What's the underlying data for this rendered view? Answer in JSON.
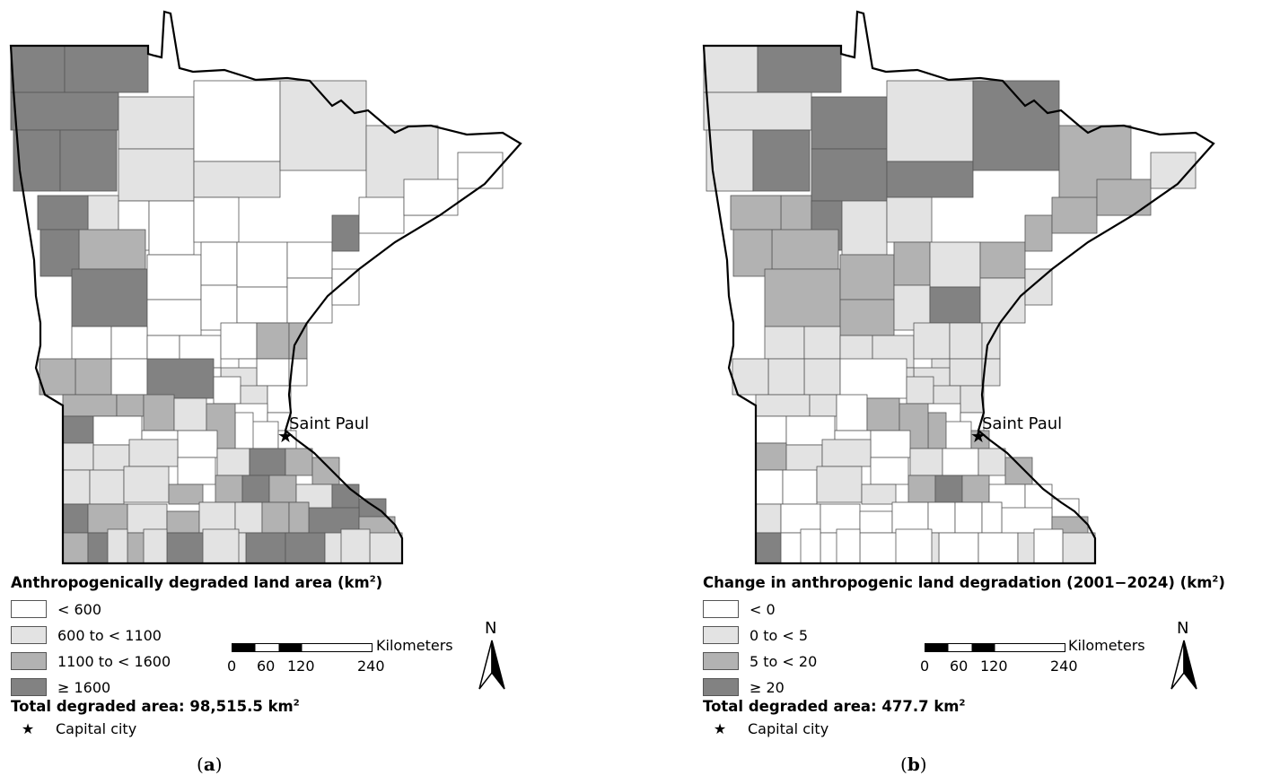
{
  "colors": {
    "class0": "#ffffff",
    "class1": "#e3e3e3",
    "class2": "#b2b2b2",
    "class3": "#828282",
    "outline": "#000000",
    "county_border": "#555555"
  },
  "panels": [
    {
      "caption_letter": "a",
      "legend_title": "Anthropogenically degraded land area (km",
      "legend_title_suffix": ")",
      "legend_sup": "2",
      "legend_items": [
        {
          "label": "< 600",
          "class": 0
        },
        {
          "label": "600 to < 1100",
          "class": 1
        },
        {
          "label": "1100 to < 1600",
          "class": 2
        },
        {
          "label": "≥ 1600",
          "class": 3
        }
      ],
      "total_label": "Total degraded area: 98,515.5 km",
      "total_sup": "2",
      "capital_label": "Capital city",
      "city_name": "Saint Paul",
      "scale_unit": "Kilometers",
      "scale_ticks": [
        "0",
        "60",
        "120",
        "240"
      ],
      "north_label": "N"
    },
    {
      "caption_letter": "b",
      "legend_title": "Change in anthropogenic land degradation (2001−2024) (km",
      "legend_title_suffix": ")",
      "legend_sup": "2",
      "legend_items": [
        {
          "label": "< 0",
          "class": 0
        },
        {
          "label": "0 to < 5",
          "class": 1
        },
        {
          "label": "5 to < 20",
          "class": 2
        },
        {
          "label": "≥ 20",
          "class": 3
        }
      ],
      "total_label": "Total degraded area: 477.7 km",
      "total_sup": "2",
      "capital_label": "Capital city",
      "city_name": "Saint Paul",
      "scale_unit": "Kilometers",
      "scale_ticks": [
        "0",
        "60",
        "120",
        "240"
      ],
      "north_label": "N"
    }
  ],
  "county_classes": {
    "a": [
      3,
      3,
      3,
      3,
      3,
      1,
      1,
      0,
      1,
      3,
      1,
      0,
      0,
      0,
      1,
      1,
      2,
      3,
      3,
      0,
      0,
      0,
      0,
      3,
      0,
      0,
      0,
      0,
      0,
      0,
      0,
      0,
      0,
      0,
      0,
      0,
      0,
      2,
      2,
      0,
      0,
      0,
      1,
      0,
      0,
      0,
      2,
      2,
      3,
      0,
      1,
      0,
      0,
      0,
      0,
      0,
      0,
      2,
      2,
      2,
      1,
      2,
      3,
      0,
      0,
      0,
      1,
      3,
      2,
      2,
      1,
      1,
      1,
      0,
      2,
      3,
      2,
      1,
      3,
      3,
      1,
      1,
      1,
      2,
      1,
      0,
      0,
      2,
      3,
      2,
      3,
      2,
      1,
      2,
      1,
      1,
      2,
      2,
      2,
      3,
      2,
      3,
      3,
      3,
      3,
      1,
      1,
      1,
      1,
      1,
      1,
      1
    ],
    "b": [
      1,
      3,
      1,
      1,
      3,
      3,
      3,
      1,
      2,
      2,
      3,
      3,
      1,
      1,
      3,
      2,
      2,
      2,
      2,
      2,
      2,
      1,
      2,
      2,
      2,
      2,
      1,
      2,
      1,
      3,
      1,
      1,
      1,
      1,
      1,
      1,
      1,
      1,
      1,
      1,
      1,
      1,
      1,
      1,
      1,
      1,
      1,
      1,
      0,
      1,
      1,
      1,
      0,
      0,
      0,
      2,
      2,
      1,
      1,
      0,
      2,
      2,
      0,
      0,
      0,
      0,
      1,
      0,
      1,
      2,
      2,
      1,
      1,
      0,
      2,
      3,
      2,
      0,
      0,
      0,
      0,
      0,
      1,
      1,
      2,
      0,
      0,
      0,
      0,
      2,
      1,
      0,
      0,
      0,
      0,
      0,
      0,
      0,
      3,
      0,
      0,
      0,
      0,
      0,
      0,
      1,
      1,
      1,
      0,
      0,
      0,
      0
    ]
  }
}
